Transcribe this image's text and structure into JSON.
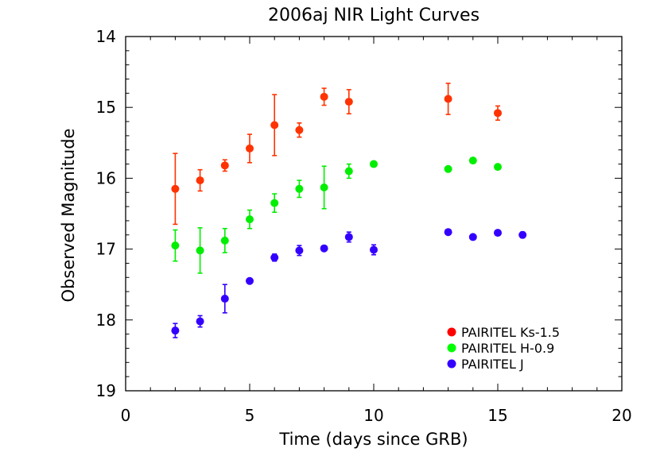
{
  "chart_data": {
    "type": "scatter",
    "title": "2006aj NIR Light Curves",
    "xlabel": "Time (days since GRB)",
    "ylabel": "Observed Magnitude",
    "xlim": [
      0,
      20
    ],
    "ylim": [
      19,
      14
    ],
    "y_inverted": true,
    "grid": false,
    "legend_position": "bottom-right",
    "x_ticks": [
      0,
      5,
      10,
      15,
      20
    ],
    "x_tick_labels": [
      "0",
      "5",
      "10",
      "15",
      "20"
    ],
    "y_ticks": [
      14,
      15,
      16,
      17,
      18,
      19
    ],
    "y_tick_labels": [
      "14",
      "15",
      "16",
      "17",
      "18",
      "19"
    ],
    "x_minor_step": 1,
    "y_minor_step": 0.2,
    "series": [
      {
        "name": "PAIRITEL Ks-1.5",
        "color": "#ff3300",
        "legend_color": "#ff0000",
        "points": [
          {
            "x": 2,
            "y": 16.15,
            "err": 0.5
          },
          {
            "x": 3,
            "y": 16.03,
            "err": 0.15
          },
          {
            "x": 4,
            "y": 15.82,
            "err": 0.08
          },
          {
            "x": 5,
            "y": 15.58,
            "err": 0.2
          },
          {
            "x": 6,
            "y": 15.25,
            "err": 0.43
          },
          {
            "x": 7,
            "y": 15.32,
            "err": 0.1
          },
          {
            "x": 8,
            "y": 14.85,
            "err": 0.12
          },
          {
            "x": 9,
            "y": 14.92,
            "err": 0.17
          },
          {
            "x": 13,
            "y": 14.88,
            "err": 0.22
          },
          {
            "x": 15,
            "y": 15.08,
            "err": 0.1
          }
        ]
      },
      {
        "name": "PAIRITEL H-0.9",
        "color": "#00ee00",
        "legend_color": "#00ff00",
        "points": [
          {
            "x": 2,
            "y": 16.95,
            "err": 0.22
          },
          {
            "x": 3,
            "y": 17.02,
            "err": 0.32
          },
          {
            "x": 4,
            "y": 16.88,
            "err": 0.17
          },
          {
            "x": 5,
            "y": 16.58,
            "err": 0.13
          },
          {
            "x": 6,
            "y": 16.35,
            "err": 0.13
          },
          {
            "x": 7,
            "y": 16.15,
            "err": 0.12
          },
          {
            "x": 8,
            "y": 16.13,
            "err": 0.3
          },
          {
            "x": 9,
            "y": 15.9,
            "err": 0.1
          },
          {
            "x": 10,
            "y": 15.8,
            "err": 0.0
          },
          {
            "x": 13,
            "y": 15.87,
            "err": 0.0
          },
          {
            "x": 14,
            "y": 15.75,
            "err": 0.0
          },
          {
            "x": 15,
            "y": 15.84,
            "err": 0.0
          }
        ]
      },
      {
        "name": "PAIRITEL J",
        "color": "#3300ff",
        "legend_color": "#3300ff",
        "points": [
          {
            "x": 2,
            "y": 18.15,
            "err": 0.1
          },
          {
            "x": 3,
            "y": 18.02,
            "err": 0.08
          },
          {
            "x": 4,
            "y": 17.7,
            "err": 0.2
          },
          {
            "x": 5,
            "y": 17.45,
            "err": 0.0
          },
          {
            "x": 6,
            "y": 17.12,
            "err": 0.05
          },
          {
            "x": 7,
            "y": 17.02,
            "err": 0.07
          },
          {
            "x": 8,
            "y": 16.99,
            "err": 0.0
          },
          {
            "x": 9,
            "y": 16.83,
            "err": 0.07
          },
          {
            "x": 10,
            "y": 17.01,
            "err": 0.07
          },
          {
            "x": 13,
            "y": 16.76,
            "err": 0.0
          },
          {
            "x": 14,
            "y": 16.83,
            "err": 0.0
          },
          {
            "x": 15,
            "y": 16.77,
            "err": 0.0
          },
          {
            "x": 16,
            "y": 16.8,
            "err": 0.04
          }
        ]
      }
    ]
  }
}
